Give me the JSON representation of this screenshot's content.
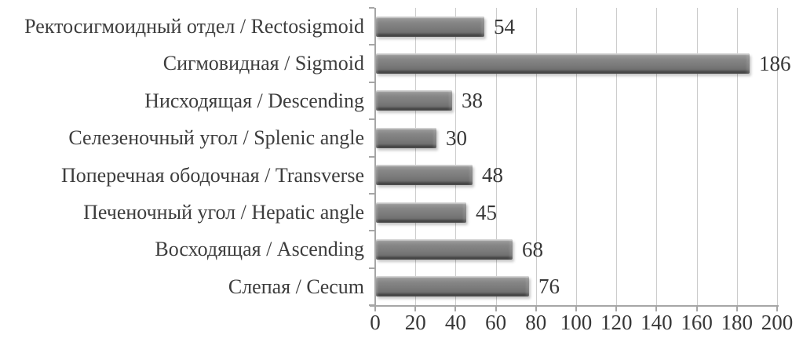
{
  "chart_data": {
    "type": "bar",
    "orientation": "horizontal",
    "title": "",
    "categories": [
      "Ректосигмоидный отдел / Rectosigmoid",
      "Сигмовидная / Sigmoid",
      "Нисходящая / Descending",
      "Селезеночный угол / Splenic angle",
      "Поперечная ободочная / Transverse",
      "Печеночный угол / Hepatic angle",
      "Восходящая / Ascending",
      "Слепая / Cecum"
    ],
    "values": [
      54,
      186,
      38,
      30,
      48,
      45,
      68,
      76
    ],
    "value_labels": [
      "54",
      "186",
      "38",
      "30",
      "48",
      "45",
      "68",
      "76"
    ],
    "xlabel": "",
    "ylabel": "",
    "xlim": [
      0,
      200
    ],
    "x_ticks": [
      0,
      20,
      40,
      60,
      80,
      100,
      120,
      140,
      160,
      180,
      200
    ],
    "grid": true,
    "legend_position": "none",
    "data_labels_shown": true,
    "colors": {
      "bar": "#7c7c7c",
      "gridline": "#cccccc",
      "axis": "#a6a6a6",
      "text": "#3d3d3d",
      "background": "#ffffff"
    }
  }
}
